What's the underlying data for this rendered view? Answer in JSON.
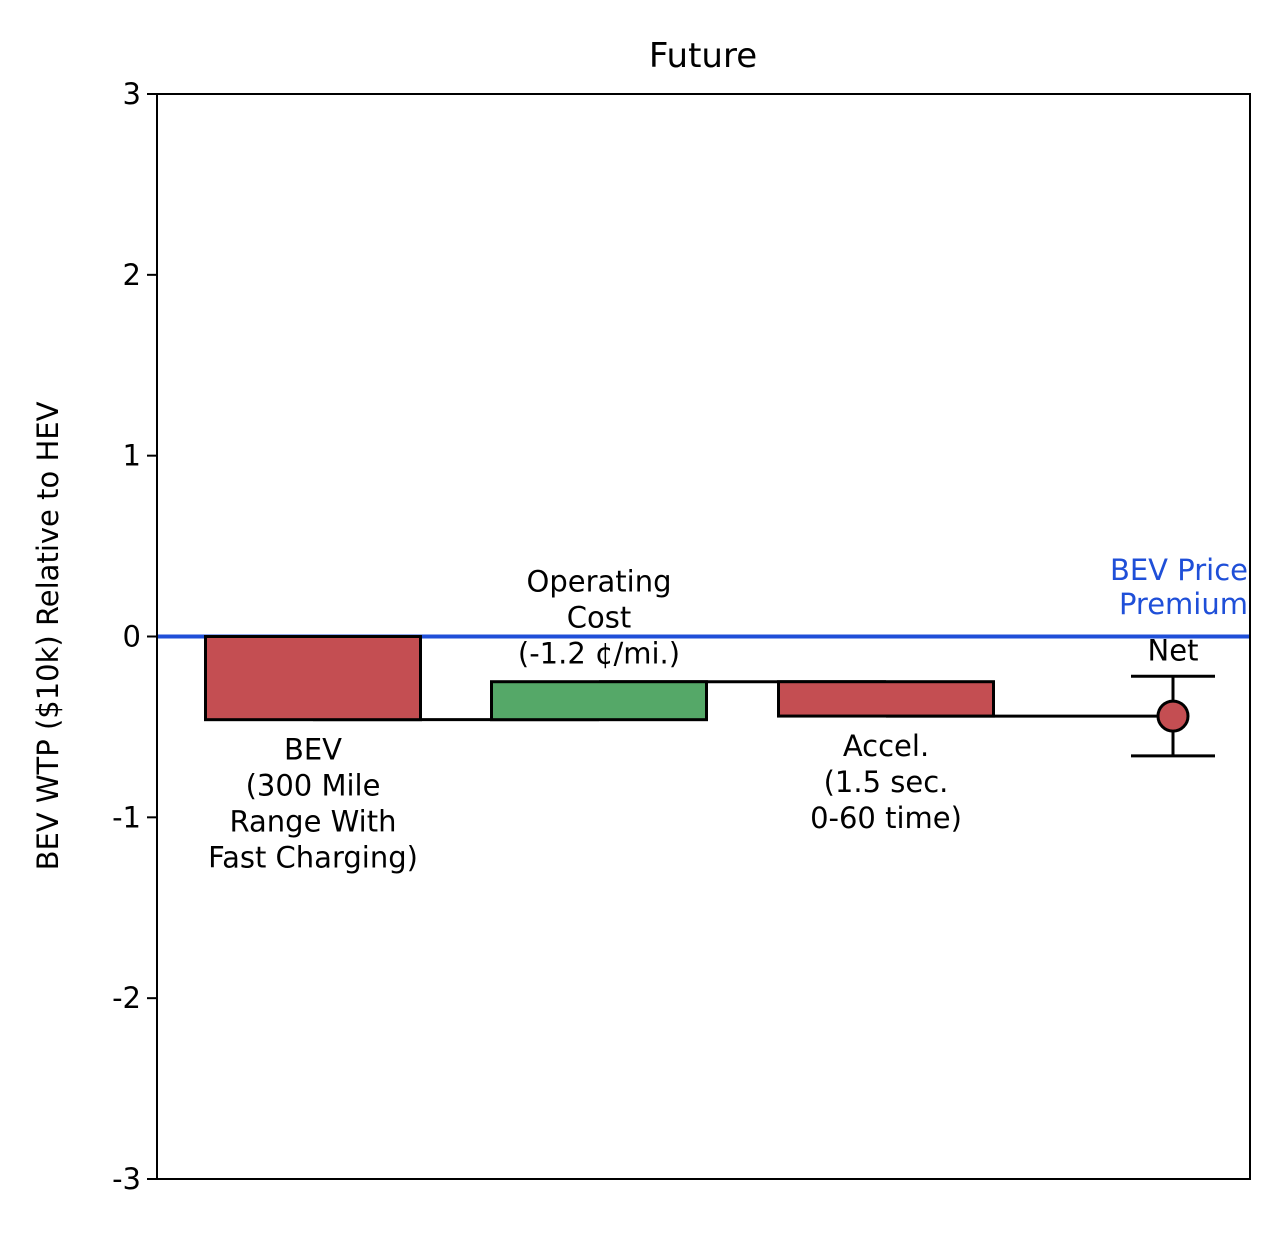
{
  "chart_data": {
    "type": "bar",
    "subtype": "waterfall",
    "title": "Future",
    "ylabel": "BEV WTP ($10k) Relative to HEV",
    "xlabel": "",
    "ylim": [
      -3,
      3
    ],
    "yticks": [
      3,
      2,
      1,
      0,
      -1,
      -2,
      -3
    ],
    "ytick_labels": [
      "3",
      "2",
      "1",
      "0",
      "-1",
      "-2",
      "-3"
    ],
    "grid": false,
    "bars": [
      {
        "name": "BEV (300 Mile Range With Fast Charging)",
        "label_lines": [
          "BEV",
          "(300 Mile",
          "Range With",
          "Fast Charging)"
        ],
        "label_position": "below",
        "start": 0,
        "end": -0.46,
        "color": "#c44e52"
      },
      {
        "name": "Operating Cost (-1.2 ¢/mi.)",
        "label_lines": [
          "Operating",
          "Cost",
          "(-1.2 ¢/mi.)"
        ],
        "label_position": "above",
        "start": -0.46,
        "end": -0.25,
        "color": "#55a868"
      },
      {
        "name": "Accel. (1.5 sec. 0-60 time)",
        "label_lines": [
          "Accel.",
          "(1.5 sec.",
          "0-60 time)"
        ],
        "label_position": "below",
        "start": -0.25,
        "end": -0.44,
        "color": "#c44e52"
      }
    ],
    "net": {
      "label": "Net",
      "value": -0.44,
      "lower": -0.66,
      "upper": -0.22,
      "color": "#c44e52"
    },
    "reference_line": {
      "value": 0,
      "label_lines": [
        "BEV Price",
        "Premium"
      ],
      "color": "#1f4fd8"
    }
  }
}
